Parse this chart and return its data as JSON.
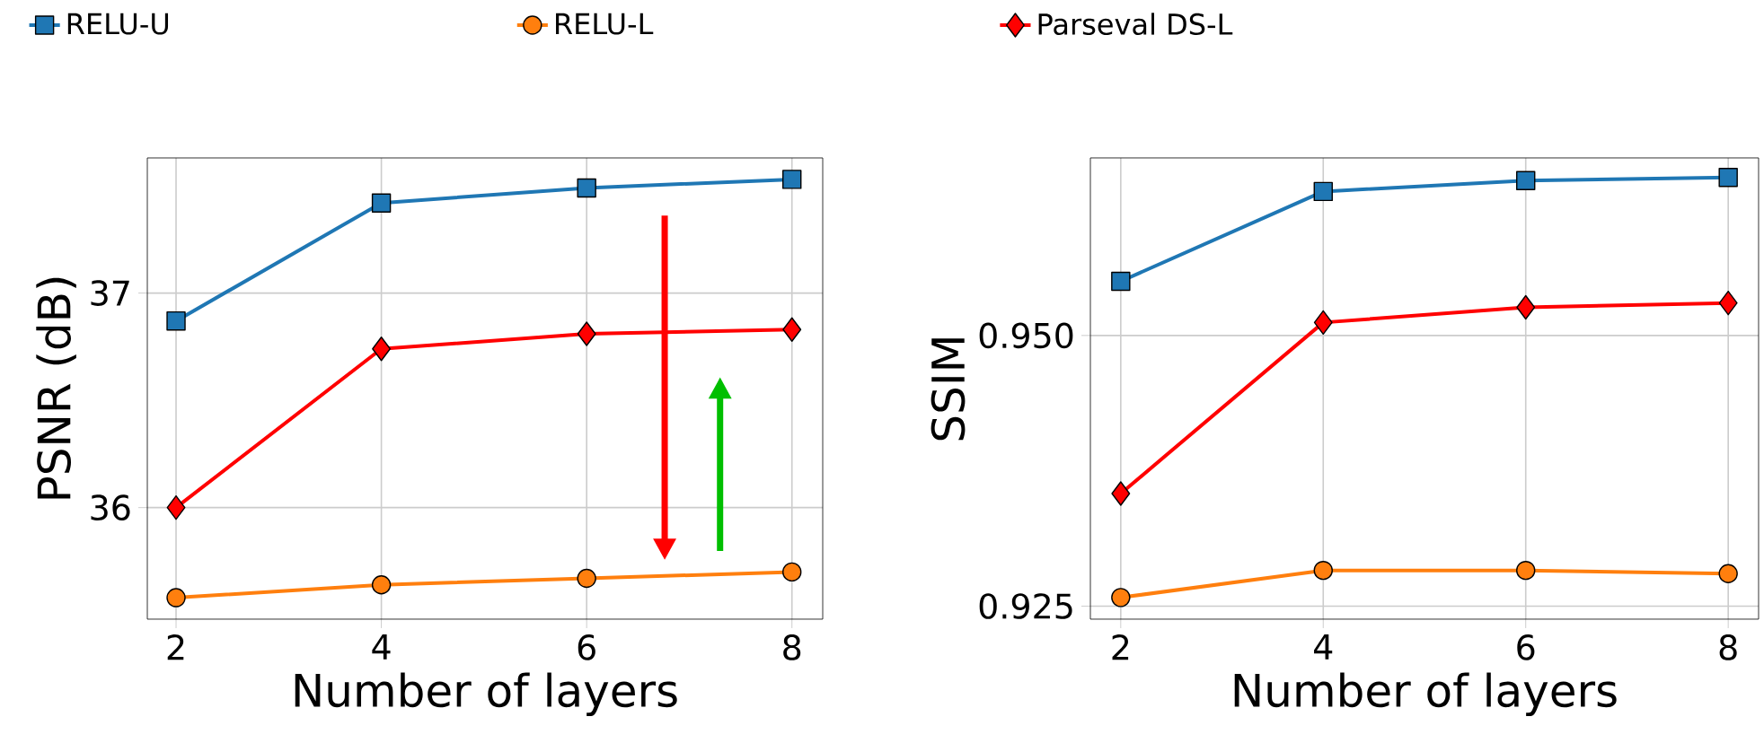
{
  "chart_data": [
    {
      "type": "line",
      "xlabel": "Number of layers",
      "ylabel": "PSNR (dB)",
      "x": [
        2,
        4,
        6,
        8
      ],
      "xlim": [
        1.72,
        8.3
      ],
      "ylim": [
        35.48,
        37.63
      ],
      "xticks": [
        2,
        4,
        6,
        8
      ],
      "yticks": [
        36,
        37
      ],
      "grid": true,
      "legend": "top",
      "series": [
        {
          "name": "RELU-U",
          "color": "#1f77b4",
          "marker": "square",
          "values": [
            36.87,
            37.42,
            37.49,
            37.53
          ]
        },
        {
          "name": "RELU-L",
          "color": "#ff7f0e",
          "marker": "circle",
          "values": [
            35.58,
            35.64,
            35.67,
            35.7
          ]
        },
        {
          "name": "Parseval DS-L",
          "color": "#ff0000",
          "marker": "diamond",
          "values": [
            36.0,
            36.74,
            36.81,
            36.83
          ]
        }
      ]
    },
    {
      "type": "line",
      "xlabel": "Number of layers",
      "ylabel": "SSIM",
      "x": [
        2,
        4,
        6,
        8
      ],
      "xlim": [
        1.7,
        8.3
      ],
      "ylim": [
        0.9238,
        0.9664
      ],
      "xticks": [
        2,
        4,
        6,
        8
      ],
      "yticks": [
        {
          "value": 0.925,
          "label": "0.925"
        },
        {
          "value": 0.95,
          "label": "0.950"
        }
      ],
      "grid": true,
      "series": [
        {
          "color": "#1f77b4",
          "marker": "square",
          "values": [
            0.955,
            0.9633,
            0.9643,
            0.9646
          ]
        },
        {
          "color": "#ff7f0e",
          "marker": "circle",
          "values": [
            0.9258,
            0.9283,
            0.9283,
            0.928
          ]
        },
        {
          "color": "#ff0000",
          "marker": "diamond",
          "values": [
            0.9354,
            0.9512,
            0.9526,
            0.953
          ]
        }
      ]
    }
  ]
}
